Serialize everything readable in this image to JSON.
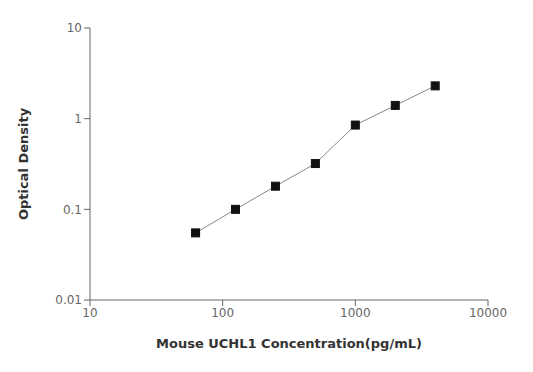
{
  "chart_data": {
    "type": "line",
    "x": [
      62.5,
      125,
      250,
      500,
      1000,
      2000,
      4000
    ],
    "values": [
      0.055,
      0.1,
      0.18,
      0.32,
      0.85,
      1.4,
      2.3
    ],
    "xlabel": "Mouse UCHL1 Concentration(pg/mL)",
    "ylabel": "Optical Density",
    "xlim": [
      10,
      10000
    ],
    "ylim": [
      0.01,
      10
    ],
    "xticks": [
      10,
      100,
      1000,
      10000
    ],
    "yticks": [
      0.01,
      0.1,
      1,
      10
    ],
    "log": true,
    "grid": false,
    "color": "#888888",
    "colors": [
      "#111111",
      "#111111",
      "#111111",
      "#111111",
      "#111111",
      "#111111",
      "#111111"
    ],
    "marker": "square"
  }
}
